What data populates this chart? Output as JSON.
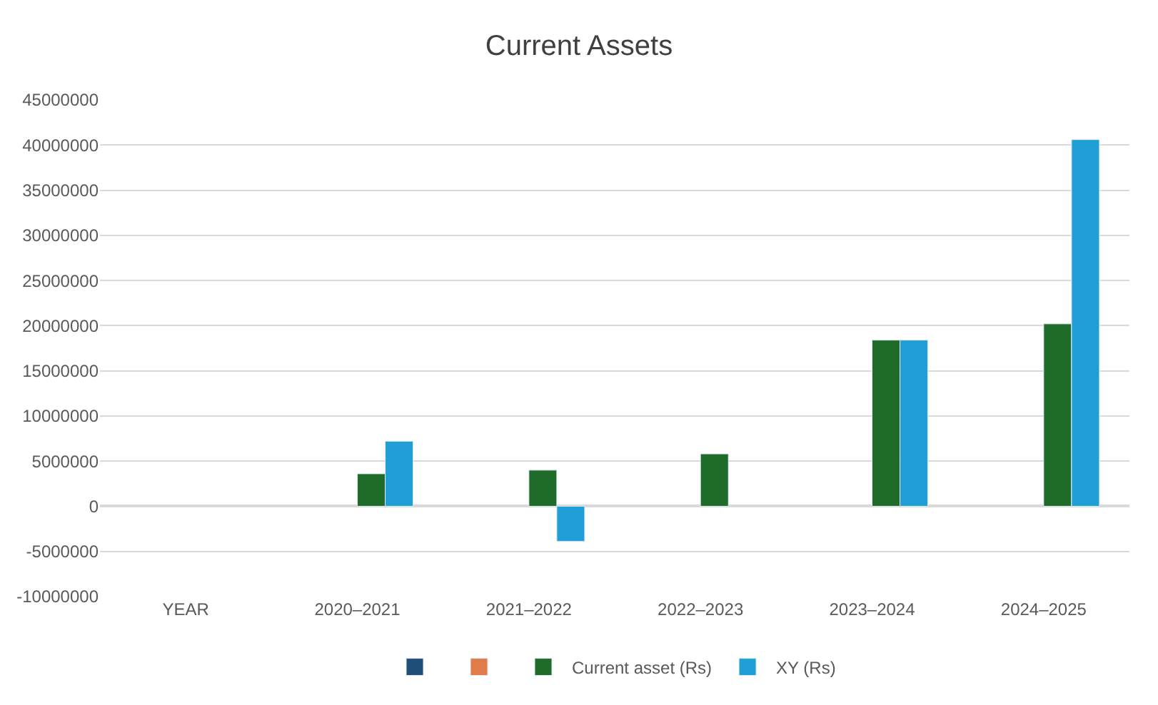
{
  "chart_data": {
    "type": "bar",
    "title": "Current Assets",
    "categories": [
      "YEAR",
      "2020–2021",
      "2021–2022",
      "2022–2023",
      "2023–2024",
      "2024–2025"
    ],
    "series": [
      {
        "color": "#1f4e79",
        "values": [
          null,
          null,
          null,
          null,
          null,
          null
        ]
      },
      {
        "color": "#e07b4a",
        "values": [
          null,
          null,
          null,
          null,
          null,
          null
        ]
      },
      {
        "name": "Current asset (Rs)",
        "color": "#1e6b2a",
        "values": [
          null,
          3600000,
          4000000,
          5800000,
          18400000,
          20200000
        ]
      },
      {
        "name": "XY (Rs)",
        "color": "#1f9fd6",
        "values": [
          null,
          7200000,
          -3900000,
          null,
          18400000,
          40600000
        ]
      }
    ],
    "ylim": [
      -10000000,
      45000000
    ],
    "yticks": [
      -10000000,
      -5000000,
      0,
      5000000,
      10000000,
      15000000,
      20000000,
      25000000,
      30000000,
      35000000,
      40000000,
      45000000
    ],
    "grid": "y",
    "legend": "bottom"
  }
}
